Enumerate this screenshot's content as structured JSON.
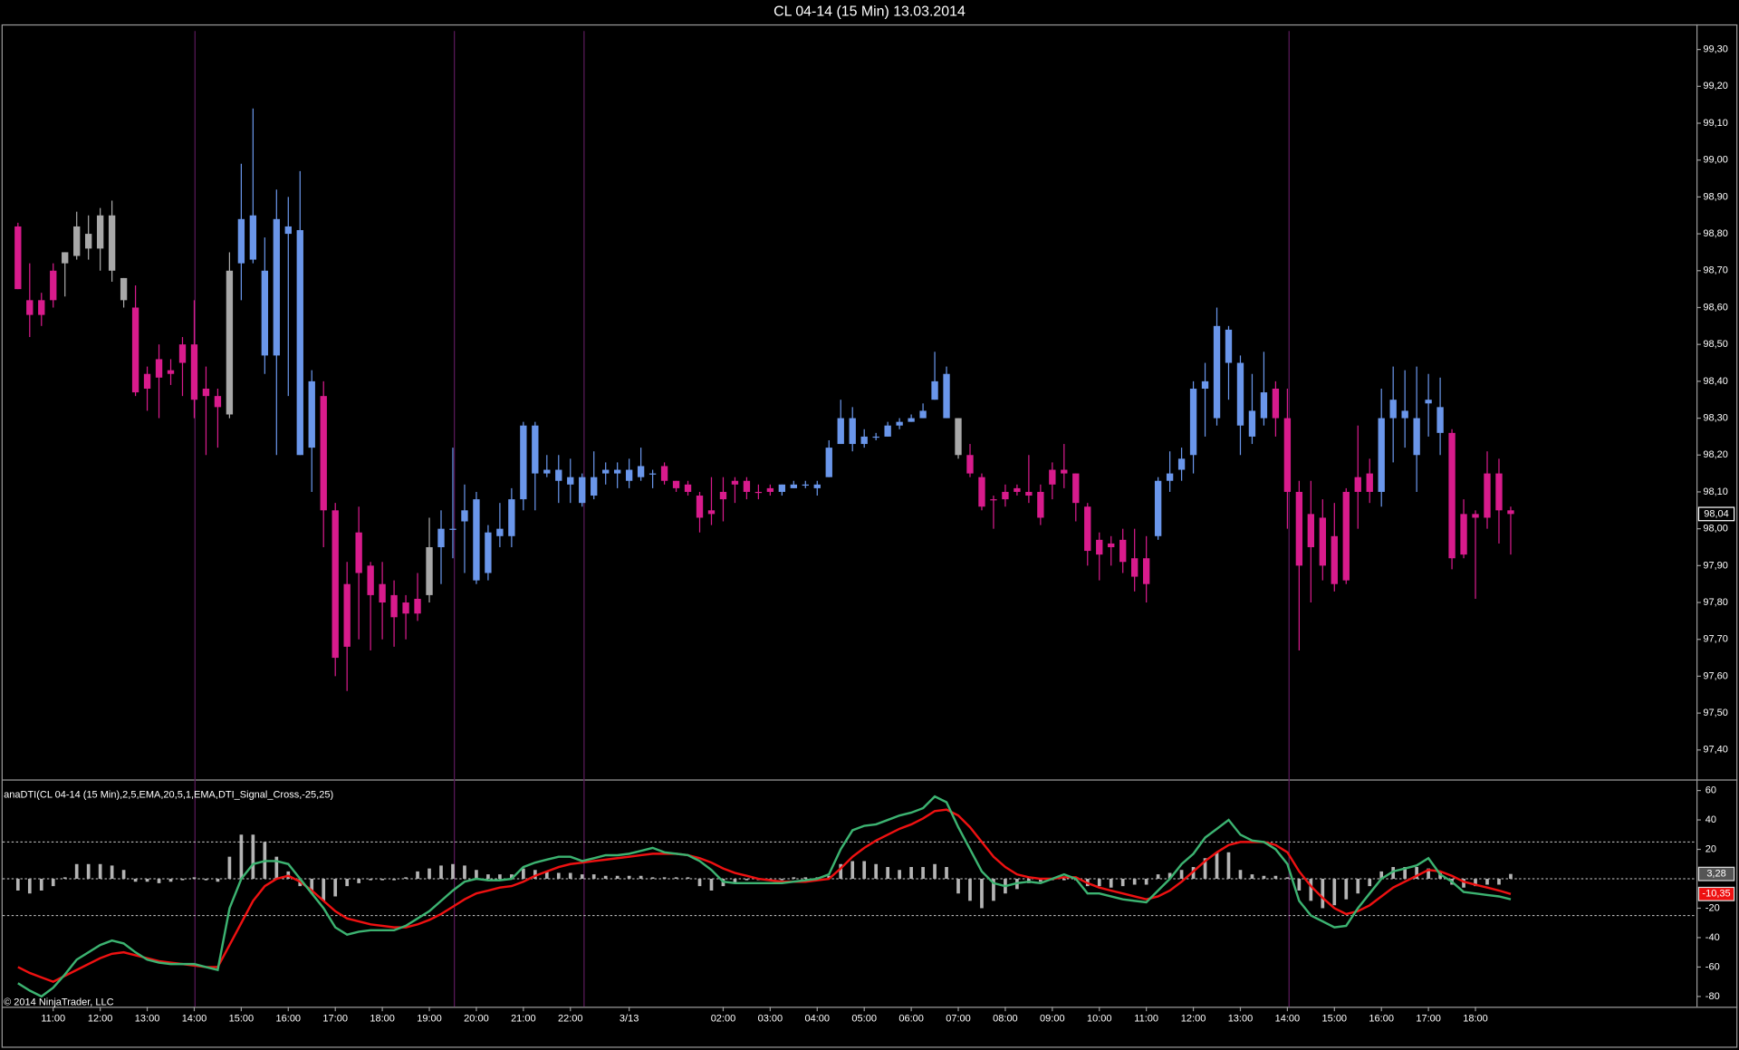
{
  "copyright": "© 2014 NinjaTrader, LLC",
  "chart_data": [
    {
      "type": "candlestick",
      "title": "CL 04-14 (15 Min)  13.03.2014",
      "last_label": "98,04",
      "palette": {
        "m": "#d81b8c",
        "b": "#6a96ea",
        "g": "#a8a8a8"
      },
      "colors": "mmmmggggggmmmmmmmmgbbbbbbbmmmmmmmmmgbbbbbbbbbbbbbbbbbbbmmmmmmmmmmbbbbbbbbbbbbbbbgmmmmmmmmmmmmmmmmbbbbbbbbbbmmmmmmmmmbbbbbbmmmmmm",
      "open": [
        98.82,
        98.62,
        98.62,
        98.7,
        98.72,
        98.74,
        98.8,
        98.76,
        98.85,
        98.68,
        98.6,
        98.38,
        98.46,
        98.42,
        98.5,
        98.5,
        98.36,
        98.36,
        98.31,
        98.72,
        98.85,
        98.7,
        98.47,
        98.82,
        98.81,
        98.4,
        98.36,
        98.05,
        97.68,
        97.88,
        97.9,
        97.85,
        97.82,
        97.8,
        97.77,
        97.82,
        97.95,
        98.0,
        98.02,
        98.08,
        97.88,
        97.98,
        97.98,
        98.08,
        98.28,
        98.15,
        98.16,
        98.14,
        98.14,
        98.09,
        98.15,
        98.16,
        98.13,
        98.14,
        98.15,
        98.17,
        98.13,
        98.12,
        98.09,
        98.04,
        98.1,
        98.13,
        98.13,
        98.1,
        98.1,
        98.1,
        98.11,
        98.12,
        98.12,
        98.14,
        98.23,
        98.3,
        98.23,
        98.25,
        98.25,
        98.28,
        98.29,
        98.3,
        98.35,
        98.42,
        98.3,
        98.2,
        98.14,
        98.08,
        98.1,
        98.11,
        98.1,
        98.1,
        98.12,
        98.16,
        98.15,
        98.06,
        97.97,
        97.95,
        97.97,
        97.92,
        97.92,
        97.98,
        98.13,
        98.16,
        98.2,
        98.38,
        98.3,
        98.54,
        98.45,
        98.25,
        98.3,
        98.38,
        98.3,
        98.1,
        98.04,
        98.03,
        97.98,
        97.86,
        98.1,
        98.15,
        98.1,
        98.3,
        98.32,
        98.3,
        98.35,
        98.33,
        98.26,
        97.93,
        98.04,
        98.03,
        98.15,
        98.05
      ],
      "high": [
        98.83,
        98.72,
        98.64,
        98.72,
        98.75,
        98.86,
        98.85,
        98.87,
        98.89,
        98.68,
        98.66,
        98.44,
        98.5,
        98.46,
        98.52,
        98.62,
        98.44,
        98.38,
        98.75,
        98.99,
        99.14,
        98.79,
        98.92,
        98.9,
        98.97,
        98.43,
        98.4,
        98.07,
        97.91,
        98.06,
        97.91,
        97.91,
        97.86,
        97.82,
        97.88,
        98.03,
        98.05,
        98.22,
        98.12,
        98.1,
        98.01,
        98.07,
        98.11,
        98.29,
        98.29,
        98.2,
        98.2,
        98.19,
        98.15,
        98.21,
        98.18,
        98.18,
        98.19,
        98.22,
        98.16,
        98.18,
        98.13,
        98.13,
        98.1,
        98.14,
        98.14,
        98.14,
        98.14,
        98.12,
        98.12,
        98.12,
        98.13,
        98.13,
        98.13,
        98.24,
        98.35,
        98.33,
        98.27,
        98.26,
        98.29,
        98.3,
        98.31,
        98.34,
        98.48,
        98.44,
        98.3,
        98.23,
        98.15,
        98.09,
        98.12,
        98.12,
        98.2,
        98.12,
        98.18,
        98.23,
        98.15,
        98.07,
        97.99,
        97.98,
        98.0,
        98.0,
        97.98,
        98.14,
        98.21,
        98.22,
        98.4,
        98.45,
        98.6,
        98.55,
        98.47,
        98.42,
        98.48,
        98.4,
        98.38,
        98.13,
        98.13,
        98.08,
        98.07,
        98.11,
        98.28,
        98.19,
        98.38,
        98.44,
        98.43,
        98.44,
        98.42,
        98.41,
        98.27,
        98.08,
        98.05,
        98.21,
        98.19,
        98.06
      ],
      "low": [
        98.65,
        98.52,
        98.55,
        98.6,
        98.63,
        98.73,
        98.73,
        98.7,
        98.67,
        98.6,
        98.36,
        98.32,
        98.3,
        98.39,
        98.36,
        98.3,
        98.2,
        98.22,
        98.3,
        98.62,
        98.72,
        98.42,
        98.2,
        98.36,
        98.2,
        98.1,
        97.95,
        97.6,
        97.56,
        97.7,
        97.67,
        97.7,
        97.68,
        97.7,
        97.75,
        97.8,
        97.85,
        97.92,
        97.88,
        97.85,
        97.86,
        97.95,
        97.95,
        98.05,
        98.05,
        98.14,
        98.07,
        98.07,
        98.06,
        98.08,
        98.12,
        98.11,
        98.11,
        98.13,
        98.11,
        98.12,
        98.1,
        98.09,
        97.99,
        98.01,
        98.02,
        98.07,
        98.08,
        98.08,
        98.09,
        98.09,
        98.11,
        98.11,
        98.09,
        98.14,
        98.23,
        98.21,
        98.22,
        98.24,
        98.25,
        98.27,
        98.29,
        98.3,
        98.35,
        98.3,
        98.19,
        98.14,
        98.05,
        98.0,
        98.06,
        98.09,
        98.07,
        98.01,
        98.08,
        98.11,
        98.02,
        97.9,
        97.86,
        97.9,
        97.88,
        97.83,
        97.8,
        97.97,
        98.1,
        98.13,
        98.15,
        98.25,
        98.28,
        98.35,
        98.2,
        98.23,
        98.28,
        98.25,
        98.0,
        97.67,
        97.8,
        97.86,
        97.83,
        97.85,
        98.0,
        98.07,
        98.06,
        98.18,
        98.22,
        98.1,
        98.25,
        98.2,
        97.89,
        97.92,
        97.81,
        98.0,
        97.96,
        97.93
      ],
      "close": [
        98.65,
        98.58,
        98.58,
        98.62,
        98.75,
        98.82,
        98.76,
        98.85,
        98.7,
        98.62,
        98.37,
        98.42,
        98.41,
        98.43,
        98.45,
        98.35,
        98.38,
        98.33,
        98.7,
        98.84,
        98.73,
        98.47,
        98.84,
        98.8,
        98.2,
        98.22,
        98.05,
        97.65,
        97.85,
        97.99,
        97.82,
        97.8,
        97.76,
        97.77,
        97.81,
        97.95,
        98.0,
        98.0,
        98.05,
        97.86,
        97.99,
        98.0,
        98.08,
        98.28,
        98.15,
        98.16,
        98.13,
        98.12,
        98.07,
        98.14,
        98.16,
        98.15,
        98.16,
        98.17,
        98.15,
        98.13,
        98.11,
        98.1,
        98.03,
        98.05,
        98.08,
        98.12,
        98.1,
        98.1,
        98.11,
        98.12,
        98.12,
        98.12,
        98.11,
        98.22,
        98.3,
        98.23,
        98.25,
        98.25,
        98.28,
        98.29,
        98.3,
        98.32,
        98.4,
        98.3,
        98.2,
        98.15,
        98.06,
        98.08,
        98.08,
        98.1,
        98.09,
        98.03,
        98.16,
        98.15,
        98.07,
        97.94,
        97.93,
        97.96,
        97.91,
        97.87,
        97.85,
        98.13,
        98.15,
        98.19,
        98.38,
        98.4,
        98.55,
        98.45,
        98.28,
        98.32,
        98.37,
        98.3,
        98.1,
        97.9,
        97.95,
        97.9,
        97.85,
        98.1,
        98.14,
        98.1,
        98.3,
        98.35,
        98.3,
        98.2,
        98.34,
        98.26,
        97.92,
        98.04,
        98.03,
        98.15,
        98.05,
        98.04
      ],
      "ylim": [
        97.32,
        99.35
      ],
      "yticks": [
        {
          "value": 97.4,
          "label": "97,40"
        },
        {
          "value": 97.5,
          "label": "97,50"
        },
        {
          "value": 97.6,
          "label": "97,60"
        },
        {
          "value": 97.7,
          "label": "97,70"
        },
        {
          "value": 97.8,
          "label": "97,80"
        },
        {
          "value": 97.9,
          "label": "97,90"
        },
        {
          "value": 98.0,
          "label": "98,00"
        },
        {
          "value": 98.1,
          "label": "98,10"
        },
        {
          "value": 98.2,
          "label": "98,20"
        },
        {
          "value": 98.3,
          "label": "98,30"
        },
        {
          "value": 98.4,
          "label": "98,40"
        },
        {
          "value": 98.5,
          "label": "98,50"
        },
        {
          "value": 98.6,
          "label": "98,60"
        },
        {
          "value": 98.7,
          "label": "98,70"
        },
        {
          "value": 98.8,
          "label": "98,80"
        },
        {
          "value": 98.9,
          "label": "98,90"
        },
        {
          "value": 99.0,
          "label": "99,00"
        },
        {
          "value": 99.1,
          "label": "99,10"
        },
        {
          "value": 99.2,
          "label": "99,20"
        },
        {
          "value": 99.3,
          "label": "99,30"
        }
      ],
      "xlim": [
        -1.3,
        142.8
      ],
      "xticks": [
        {
          "value": 3,
          "label": "11:00"
        },
        {
          "value": 7,
          "label": "12:00"
        },
        {
          "value": 11,
          "label": "13:00"
        },
        {
          "value": 15,
          "label": "14:00"
        },
        {
          "value": 19,
          "label": "15:00"
        },
        {
          "value": 23,
          "label": "16:00"
        },
        {
          "value": 27,
          "label": "17:00"
        },
        {
          "value": 31,
          "label": "18:00"
        },
        {
          "value": 35,
          "label": "19:00"
        },
        {
          "value": 39,
          "label": "20:00"
        },
        {
          "value": 43,
          "label": "21:00"
        },
        {
          "value": 47,
          "label": "22:00"
        },
        {
          "value": 52,
          "label": "3/13"
        },
        {
          "value": 60,
          "label": "02:00"
        },
        {
          "value": 64,
          "label": "03:00"
        },
        {
          "value": 68,
          "label": "04:00"
        },
        {
          "value": 72,
          "label": "05:00"
        },
        {
          "value": 76,
          "label": "06:00"
        },
        {
          "value": 80,
          "label": "07:00"
        },
        {
          "value": 84,
          "label": "08:00"
        },
        {
          "value": 88,
          "label": "09:00"
        },
        {
          "value": 92,
          "label": "10:00"
        },
        {
          "value": 96,
          "label": "11:00"
        },
        {
          "value": 100,
          "label": "12:00"
        },
        {
          "value": 104,
          "label": "13:00"
        },
        {
          "value": 108,
          "label": "14:00"
        },
        {
          "value": 112,
          "label": "15:00"
        },
        {
          "value": 116,
          "label": "16:00"
        },
        {
          "value": 120,
          "label": "17:00"
        },
        {
          "value": 124,
          "label": "18:00"
        }
      ]
    },
    {
      "type": "indicator",
      "title": "anaDTI(CL 04-14 (15 Min),2,5,EMA,20,5,1,EMA,DTI_Signal_Cross,-25,25)",
      "xlim": [
        -1.3,
        142.8
      ],
      "ylim": [
        -87,
        66
      ],
      "yticks": [
        60,
        40,
        20,
        -20,
        -40,
        -60,
        -80
      ],
      "levels": [
        25,
        0,
        -25
      ],
      "series": [
        {
          "kind": "bar",
          "color": "#b4b4b4",
          "last_label": "3,28",
          "values": [
            -8,
            -10,
            -8,
            -5,
            1,
            10,
            10,
            10,
            9,
            6,
            -2,
            -2,
            -3,
            -2,
            -1,
            1,
            -1,
            -2,
            15,
            30,
            30,
            25,
            15,
            5,
            -5,
            -10,
            -15,
            -12,
            -5,
            -3,
            -1,
            -1,
            -1,
            1,
            5,
            7,
            9,
            10,
            9,
            6,
            3,
            3,
            3,
            7,
            6,
            5,
            4,
            4,
            3,
            3,
            2,
            2,
            2,
            2,
            1,
            1,
            1,
            1,
            -5,
            -8,
            -5,
            -3,
            -1,
            -1,
            -1,
            -1,
            1,
            1,
            1,
            2,
            10,
            12,
            12,
            10,
            8,
            6,
            8,
            8,
            10,
            8,
            -10,
            -15,
            -20,
            -15,
            -10,
            -7,
            -3,
            -2,
            -1,
            -1,
            -1,
            -5,
            -5,
            -6,
            -5,
            -4,
            -4,
            3,
            4,
            6,
            8,
            14,
            18,
            18,
            6,
            3,
            2,
            2,
            1,
            -8,
            -15,
            -20,
            -18,
            -14,
            -10,
            -5,
            5,
            8,
            8,
            8,
            7,
            5,
            -4,
            -6,
            -5,
            -4,
            -4,
            3.28
          ]
        },
        {
          "kind": "line",
          "color": "#ee1111",
          "last_label": "-10,35",
          "values": [
            -60,
            -64,
            -67,
            -70,
            -66,
            -62,
            -58,
            -54,
            -51,
            -50,
            -52,
            -54,
            -56,
            -57,
            -58,
            -59,
            -60,
            -60,
            -45,
            -30,
            -15,
            -5,
            0,
            2,
            -2,
            -8,
            -15,
            -22,
            -27,
            -29,
            -31,
            -32,
            -33,
            -33,
            -31,
            -28,
            -24,
            -19,
            -14,
            -10,
            -8,
            -6,
            -5,
            -2,
            2,
            5,
            8,
            10,
            11,
            12,
            13,
            14,
            15,
            16,
            17,
            17,
            17,
            16,
            14,
            11,
            7,
            4,
            2,
            0,
            -1,
            -2,
            -2,
            -2,
            -1,
            0,
            7,
            15,
            21,
            26,
            30,
            34,
            37,
            41,
            46,
            47,
            43,
            35,
            25,
            15,
            8,
            3,
            1,
            0,
            0,
            1,
            1,
            -3,
            -6,
            -8,
            -10,
            -12,
            -14,
            -12,
            -8,
            -2,
            5,
            12,
            18,
            23,
            25,
            25,
            25,
            23,
            18,
            5,
            -5,
            -13,
            -20,
            -24,
            -22,
            -18,
            -12,
            -6,
            -2,
            2,
            6,
            5,
            2,
            -2,
            -4,
            -6,
            -8,
            -10.35
          ]
        },
        {
          "kind": "line",
          "color": "#3cb371",
          "values": [
            -71,
            -76,
            -80,
            -74,
            -65,
            -55,
            -50,
            -45,
            -42,
            -44,
            -50,
            -55,
            -57,
            -58,
            -58,
            -58,
            -60,
            -62,
            -20,
            0,
            10,
            12,
            12,
            10,
            0,
            -10,
            -20,
            -33,
            -38,
            -36,
            -35,
            -35,
            -35,
            -32,
            -27,
            -22,
            -15,
            -8,
            -2,
            0,
            -1,
            -1,
            0,
            8,
            11,
            13,
            15,
            15,
            12,
            14,
            16,
            16,
            17,
            19,
            21,
            18,
            17,
            16,
            12,
            6,
            -2,
            -3,
            -3,
            -3,
            -3,
            -3,
            -2,
            -1,
            0,
            3,
            20,
            33,
            36,
            37,
            40,
            43,
            45,
            48,
            56,
            52,
            35,
            20,
            5,
            -3,
            -5,
            -3,
            -2,
            -3,
            0,
            3,
            0,
            -10,
            -10,
            -12,
            -14,
            -15,
            -16,
            -8,
            0,
            10,
            17,
            28,
            34,
            40,
            30,
            26,
            25,
            20,
            10,
            -15,
            -25,
            -29,
            -33,
            -32,
            -20,
            -10,
            0,
            5,
            7,
            9,
            14,
            3,
            -2,
            -9,
            -10,
            -11,
            -12,
            -14
          ]
        }
      ]
    }
  ]
}
